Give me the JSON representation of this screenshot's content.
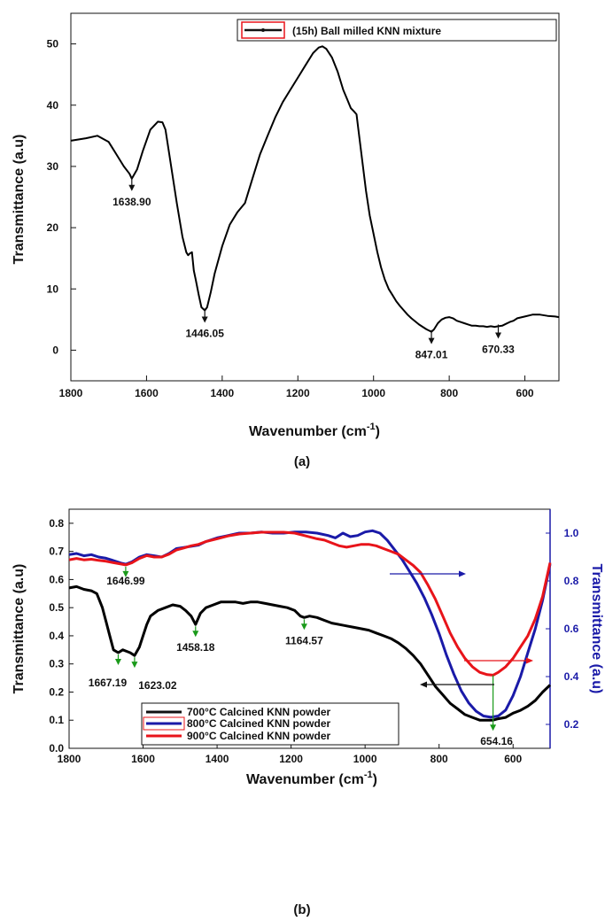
{
  "chart_data": [
    {
      "type": "line",
      "panel_label": "(a)",
      "xlabel": "Wavenumber (cm",
      "xlabel_sup": "-1",
      "xlabel_close": ")",
      "ylabel": "Transmittance (a.u)",
      "xlim": [
        1800,
        510
      ],
      "ylim": [
        -5,
        55
      ],
      "x_ticks": [
        1800,
        1600,
        1400,
        1200,
        1000,
        800,
        600
      ],
      "y_ticks": [
        0,
        10,
        20,
        30,
        40,
        50
      ],
      "legend_position": "top-right",
      "series": [
        {
          "name": "(15h) Ball milled KNN mixture",
          "color": "#000000",
          "x": [
            1800,
            1760,
            1730,
            1700,
            1680,
            1660,
            1645,
            1638.9,
            1625,
            1610,
            1590,
            1570,
            1558,
            1550,
            1540,
            1520,
            1505,
            1495,
            1490,
            1485,
            1480,
            1475,
            1470,
            1462,
            1455,
            1446.05,
            1440,
            1430,
            1420,
            1400,
            1380,
            1360,
            1340,
            1320,
            1300,
            1280,
            1260,
            1240,
            1220,
            1200,
            1180,
            1160,
            1145,
            1135,
            1125,
            1110,
            1095,
            1080,
            1070,
            1060,
            1052,
            1045,
            1040,
            1030,
            1020,
            1010,
            1000,
            990,
            980,
            970,
            960,
            950,
            940,
            930,
            920,
            910,
            900,
            890,
            880,
            870,
            860,
            850,
            847.01,
            840,
            830,
            820,
            810,
            800,
            790,
            780,
            770,
            760,
            750,
            740,
            730,
            720,
            710,
            700,
            690,
            680,
            670.33,
            660,
            650,
            640,
            630,
            620,
            600,
            580,
            560,
            540,
            520,
            510
          ],
          "y": [
            34.2,
            34.6,
            35.0,
            34.0,
            32.0,
            30.0,
            28.8,
            28.0,
            29.5,
            32.5,
            36.0,
            37.3,
            37.2,
            36.0,
            32.0,
            24.0,
            18.5,
            16.0,
            15.5,
            15.8,
            16.0,
            13.0,
            11.5,
            9.0,
            7.0,
            6.5,
            7.0,
            9.5,
            12.5,
            17.0,
            20.5,
            22.5,
            24.0,
            28.0,
            32.0,
            35.0,
            38.0,
            40.5,
            42.5,
            44.5,
            46.5,
            48.5,
            49.4,
            49.6,
            49.2,
            47.8,
            45.5,
            42.5,
            41.0,
            39.5,
            39.0,
            38.5,
            36.0,
            31.0,
            26.0,
            22.0,
            19.0,
            16.0,
            13.5,
            11.5,
            10.0,
            9.0,
            8.0,
            7.2,
            6.5,
            5.8,
            5.2,
            4.7,
            4.2,
            3.8,
            3.4,
            3.1,
            3.0,
            3.4,
            4.4,
            5.0,
            5.3,
            5.4,
            5.2,
            4.8,
            4.6,
            4.4,
            4.2,
            4.0,
            4.0,
            3.9,
            3.9,
            3.8,
            3.9,
            3.8,
            3.9,
            4.0,
            4.3,
            4.6,
            4.8,
            5.2,
            5.5,
            5.8,
            5.8,
            5.6,
            5.5,
            5.4
          ]
        }
      ],
      "annotations": [
        {
          "text": "1638.90",
          "x": 1638.9,
          "y": 28.0
        },
        {
          "text": "1446.05",
          "x": 1446.05,
          "y": 6.5
        },
        {
          "text": "847.01",
          "x": 847.01,
          "y": 3.0
        },
        {
          "text": "670.33",
          "x": 670.33,
          "y": 3.9
        }
      ]
    },
    {
      "type": "line",
      "panel_label": "(b)",
      "xlabel": "Wavenumber (cm",
      "xlabel_sup": "-1",
      "xlabel_close": ")",
      "ylabel": "Transmittance (a.u)",
      "ylabel_right": "Transmittance (a.u)",
      "xlim": [
        1800,
        500
      ],
      "ylim": [
        0.0,
        0.85
      ],
      "ylim_right": [
        0.1,
        1.1
      ],
      "x_ticks": [
        1800,
        1600,
        1400,
        1200,
        1000,
        800,
        600
      ],
      "y_ticks": [
        0.0,
        0.1,
        0.2,
        0.3,
        0.4,
        0.5,
        0.6,
        0.7,
        0.8
      ],
      "y_ticks_right": [
        0.2,
        0.4,
        0.6,
        0.8,
        1.0
      ],
      "legend_position": "bottom-left",
      "series": [
        {
          "name": "700°C Calcined KNN powder",
          "axis": "left",
          "color": "#000000",
          "x": [
            1800,
            1780,
            1760,
            1740,
            1725,
            1710,
            1700,
            1690,
            1680,
            1667.19,
            1655,
            1645,
            1635,
            1623.02,
            1610,
            1600,
            1590,
            1580,
            1570,
            1560,
            1540,
            1520,
            1500,
            1485,
            1470,
            1458.18,
            1445,
            1430,
            1410,
            1390,
            1370,
            1350,
            1330,
            1310,
            1290,
            1270,
            1250,
            1230,
            1210,
            1190,
            1175,
            1164.57,
            1150,
            1130,
            1110,
            1090,
            1070,
            1050,
            1030,
            1010,
            990,
            970,
            950,
            930,
            910,
            890,
            870,
            850,
            830,
            810,
            790,
            770,
            750,
            730,
            710,
            690,
            670,
            654.16,
            640,
            620,
            600,
            580,
            560,
            540,
            520,
            500
          ],
          "y": [
            0.57,
            0.575,
            0.565,
            0.56,
            0.55,
            0.5,
            0.45,
            0.4,
            0.35,
            0.34,
            0.35,
            0.345,
            0.34,
            0.33,
            0.36,
            0.4,
            0.44,
            0.47,
            0.48,
            0.49,
            0.5,
            0.51,
            0.505,
            0.49,
            0.47,
            0.44,
            0.48,
            0.5,
            0.51,
            0.52,
            0.52,
            0.52,
            0.515,
            0.52,
            0.52,
            0.515,
            0.51,
            0.505,
            0.5,
            0.49,
            0.47,
            0.465,
            0.47,
            0.465,
            0.455,
            0.445,
            0.44,
            0.435,
            0.43,
            0.425,
            0.42,
            0.41,
            0.4,
            0.39,
            0.375,
            0.355,
            0.33,
            0.3,
            0.26,
            0.22,
            0.19,
            0.16,
            0.14,
            0.12,
            0.11,
            0.1,
            0.1,
            0.1,
            0.105,
            0.11,
            0.125,
            0.135,
            0.15,
            0.17,
            0.2,
            0.225
          ]
        },
        {
          "name": "800°C Calcined KNN powder",
          "axis": "right",
          "color": "#1a1aa8",
          "x": [
            1800,
            1780,
            1760,
            1740,
            1720,
            1700,
            1680,
            1660,
            1646.99,
            1630,
            1610,
            1590,
            1570,
            1550,
            1530,
            1510,
            1490,
            1470,
            1450,
            1430,
            1400,
            1370,
            1340,
            1310,
            1280,
            1250,
            1220,
            1190,
            1160,
            1130,
            1100,
            1080,
            1060,
            1040,
            1020,
            1000,
            980,
            960,
            940,
            920,
            900,
            880,
            860,
            840,
            820,
            800,
            780,
            760,
            740,
            720,
            700,
            680,
            660,
            640,
            620,
            600,
            580,
            560,
            540,
            520,
            500
          ],
          "y": [
            0.91,
            0.915,
            0.905,
            0.91,
            0.9,
            0.895,
            0.885,
            0.875,
            0.87,
            0.88,
            0.9,
            0.91,
            0.905,
            0.9,
            0.915,
            0.935,
            0.94,
            0.945,
            0.95,
            0.965,
            0.98,
            0.99,
            1.0,
            1.0,
            1.005,
            1.0,
            1.0,
            1.005,
            1.005,
            1.0,
            0.99,
            0.98,
            1.0,
            0.985,
            0.99,
            1.005,
            1.01,
            1.0,
            0.97,
            0.93,
            0.89,
            0.84,
            0.79,
            0.73,
            0.66,
            0.58,
            0.49,
            0.41,
            0.34,
            0.29,
            0.255,
            0.235,
            0.23,
            0.235,
            0.26,
            0.32,
            0.4,
            0.5,
            0.6,
            0.72,
            0.87
          ]
        },
        {
          "name": "900°C Calcined KNN powder",
          "axis": "left",
          "color": "#e8141a",
          "x": [
            1800,
            1780,
            1760,
            1740,
            1720,
            1700,
            1680,
            1660,
            1646.99,
            1630,
            1610,
            1590,
            1570,
            1550,
            1530,
            1510,
            1490,
            1470,
            1450,
            1430,
            1400,
            1370,
            1340,
            1310,
            1280,
            1250,
            1220,
            1190,
            1160,
            1130,
            1110,
            1090,
            1070,
            1050,
            1030,
            1010,
            990,
            970,
            950,
            930,
            910,
            890,
            870,
            850,
            830,
            810,
            790,
            770,
            750,
            730,
            710,
            690,
            670,
            654.16,
            640,
            620,
            600,
            580,
            560,
            540,
            520,
            500
          ],
          "y": [
            0.67,
            0.675,
            0.67,
            0.672,
            0.668,
            0.665,
            0.66,
            0.655,
            0.652,
            0.66,
            0.675,
            0.685,
            0.68,
            0.68,
            0.69,
            0.705,
            0.712,
            0.72,
            0.725,
            0.735,
            0.745,
            0.755,
            0.762,
            0.765,
            0.768,
            0.768,
            0.768,
            0.765,
            0.755,
            0.745,
            0.74,
            0.73,
            0.72,
            0.715,
            0.72,
            0.725,
            0.725,
            0.72,
            0.71,
            0.7,
            0.69,
            0.67,
            0.65,
            0.625,
            0.58,
            0.53,
            0.47,
            0.41,
            0.36,
            0.32,
            0.29,
            0.27,
            0.262,
            0.26,
            0.27,
            0.29,
            0.32,
            0.36,
            0.4,
            0.46,
            0.54,
            0.66
          ]
        }
      ],
      "annotations": [
        {
          "text": "1646.99",
          "x": 1646.99,
          "y": 0.652
        },
        {
          "text": "1667.19",
          "x": 1667.19,
          "y": 0.34
        },
        {
          "text": "1623.02",
          "x": 1623.02,
          "y": 0.33
        },
        {
          "text": "1458.18",
          "x": 1458.18,
          "y": 0.44
        },
        {
          "text": "1164.57",
          "x": 1164.57,
          "y": 0.465
        },
        {
          "text": "654.16",
          "x": 654.16,
          "y": 0.1
        }
      ]
    }
  ]
}
